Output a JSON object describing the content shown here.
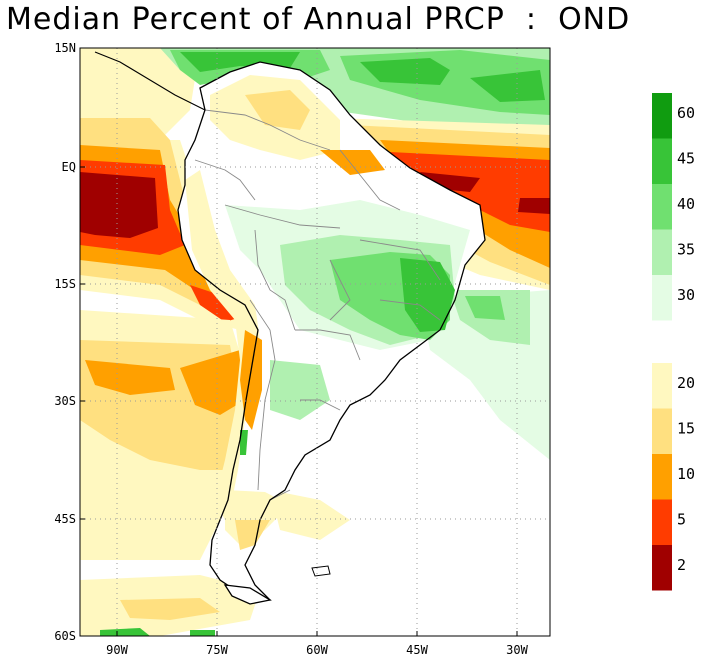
{
  "title": "Median Percent of Annual PRCP  :  OND",
  "lat_labels": [
    "15N",
    "EQ",
    "15S",
    "30S",
    "45S",
    "60S"
  ],
  "lon_labels": [
    "90W",
    "75W",
    "60W",
    "45W",
    "30W"
  ],
  "extent": {
    "lon_min": -95,
    "lon_max": -27,
    "lat_min": -60,
    "lat_max": 15
  },
  "colorbar": {
    "upper_colors": [
      "#109c10",
      "#38c438",
      "#70e070",
      "#b0f0b0",
      "#e4fce4",
      "#ffffff"
    ],
    "upper_labels": [
      "60",
      "45",
      "40",
      "35",
      "30"
    ],
    "lower_colors": [
      "#fff8c0",
      "#ffe080",
      "#ffa000",
      "#ff3c00",
      "#a00000"
    ],
    "lower_labels": [
      "20",
      "15",
      "10",
      "5",
      "2"
    ]
  },
  "colors": {
    "dark_green": "#109c10",
    "green": "#38c438",
    "light_green": "#70e070",
    "pale_green": "#b0f0b0",
    "faint_green": "#e4fce4",
    "pale_yellow": "#fff8c0",
    "yellow": "#ffe080",
    "orange": "#ffa000",
    "red_orange": "#ff3c00",
    "dark_red": "#a00000",
    "coast": "#000000",
    "borders": "#8a8a8a",
    "grid": "#9a9a9a"
  }
}
